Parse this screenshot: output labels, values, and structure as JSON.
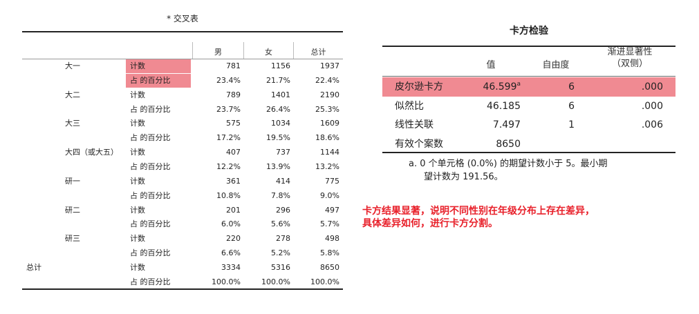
{
  "crosstab": {
    "title": "* 交叉表",
    "col_headers": [
      "男",
      "女",
      "总计"
    ],
    "rows": [
      {
        "group": "大一",
        "stats": [
          {
            "label": "计数",
            "values": [
              "781",
              "1156",
              "1937"
            ]
          },
          {
            "label": "占 的百分比",
            "values": [
              "23.4%",
              "21.7%",
              "22.4%"
            ]
          }
        ]
      },
      {
        "group": "大二",
        "stats": [
          {
            "label": "计数",
            "values": [
              "789",
              "1401",
              "2190"
            ]
          },
          {
            "label": "占 的百分比",
            "values": [
              "23.7%",
              "26.4%",
              "25.3%"
            ]
          }
        ]
      },
      {
        "group": "大三",
        "stats": [
          {
            "label": "计数",
            "values": [
              "575",
              "1034",
              "1609"
            ]
          },
          {
            "label": "占 的百分比",
            "values": [
              "17.2%",
              "19.5%",
              "18.6%"
            ]
          }
        ]
      },
      {
        "group": "大四（或大五）",
        "stats": [
          {
            "label": "计数",
            "values": [
              "407",
              "737",
              "1144"
            ]
          },
          {
            "label": "占 的百分比",
            "values": [
              "12.2%",
              "13.9%",
              "13.2%"
            ]
          }
        ]
      },
      {
        "group": "研一",
        "stats": [
          {
            "label": "计数",
            "values": [
              "361",
              "414",
              "775"
            ]
          },
          {
            "label": "占 的百分比",
            "values": [
              "10.8%",
              "7.8%",
              "9.0%"
            ]
          }
        ]
      },
      {
        "group": "研二",
        "stats": [
          {
            "label": "计数",
            "values": [
              "201",
              "296",
              "497"
            ]
          },
          {
            "label": "占 的百分比",
            "values": [
              "6.0%",
              "5.6%",
              "5.7%"
            ]
          }
        ]
      },
      {
        "group": "研三",
        "stats": [
          {
            "label": "计数",
            "values": [
              "220",
              "278",
              "498"
            ]
          },
          {
            "label": "占 的百分比",
            "values": [
              "6.6%",
              "5.2%",
              "5.8%"
            ]
          }
        ]
      }
    ],
    "total": {
      "label": "总计",
      "stats": [
        {
          "label": "计数",
          "values": [
            "3334",
            "5316",
            "8650"
          ]
        },
        {
          "label": "占 的百分比",
          "values": [
            "100.0%",
            "100.0%",
            "100.0%"
          ]
        }
      ]
    },
    "highlight_color": "#f08a92"
  },
  "chi_square": {
    "title": "卡方检验",
    "headers": {
      "value": "值",
      "df": "自由度",
      "sig_line1": "渐进显著性",
      "sig_line2": "（双侧）"
    },
    "rows": [
      {
        "label": "皮尔逊卡方",
        "value": "46.599",
        "sup": "a",
        "df": "6",
        "sig": ".000"
      },
      {
        "label": "似然比",
        "value": "46.185",
        "df": "6",
        "sig": ".000"
      },
      {
        "label": "线性关联",
        "value": "7.497",
        "df": "1",
        "sig": ".006"
      },
      {
        "label": "有效个案数",
        "value": "8650",
        "df": "",
        "sig": ""
      }
    ],
    "footnote_line1": "a. 0 个单元格 (0.0%) 的期望计数小于 5。最小期",
    "footnote_line2": "望计数为 191.56。"
  },
  "note": {
    "line1": "卡方结果显著，说明不同性别在年级分布上存在差异，",
    "line2": "具体差异如何，进行卡方分割。",
    "color": "#e8202a"
  }
}
